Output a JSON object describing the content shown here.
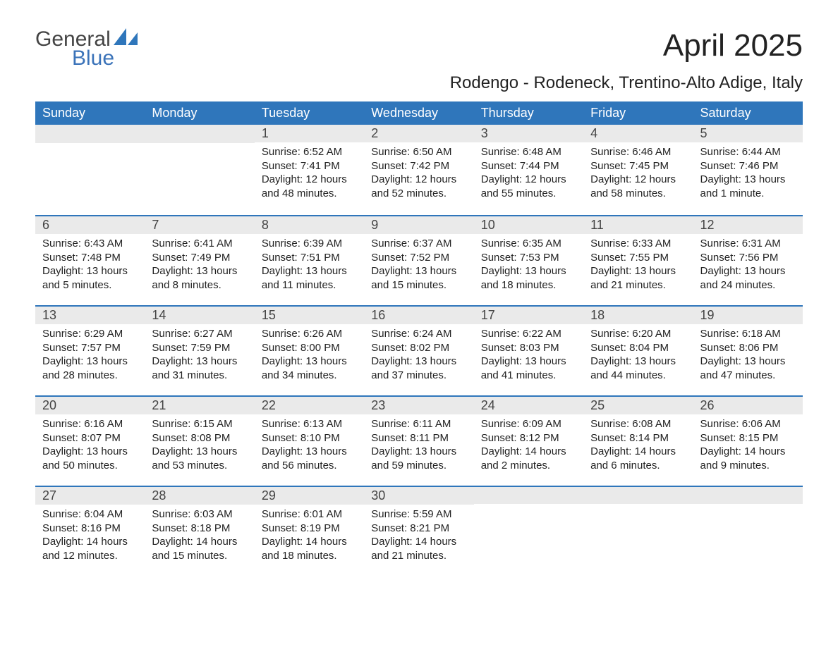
{
  "logo": {
    "line1": "General",
    "line2": "Blue"
  },
  "title": "April 2025",
  "subtitle": "Rodengo - Rodeneck, Trentino-Alto Adige, Italy",
  "weekdays": [
    "Sunday",
    "Monday",
    "Tuesday",
    "Wednesday",
    "Thursday",
    "Friday",
    "Saturday"
  ],
  "colors": {
    "header_bg": "#2f76bb",
    "header_text": "#ffffff",
    "band_bg": "#eaeaea",
    "band_border": "#2f76bb",
    "body_text": "#222222",
    "logo_blue": "#3b73b9",
    "logo_gray": "#444444"
  },
  "weeks": [
    [
      {
        "blank": true
      },
      {
        "blank": true
      },
      {
        "num": "1",
        "sunrise": "Sunrise: 6:52 AM",
        "sunset": "Sunset: 7:41 PM",
        "dl1": "Daylight: 12 hours",
        "dl2": "and 48 minutes."
      },
      {
        "num": "2",
        "sunrise": "Sunrise: 6:50 AM",
        "sunset": "Sunset: 7:42 PM",
        "dl1": "Daylight: 12 hours",
        "dl2": "and 52 minutes."
      },
      {
        "num": "3",
        "sunrise": "Sunrise: 6:48 AM",
        "sunset": "Sunset: 7:44 PM",
        "dl1": "Daylight: 12 hours",
        "dl2": "and 55 minutes."
      },
      {
        "num": "4",
        "sunrise": "Sunrise: 6:46 AM",
        "sunset": "Sunset: 7:45 PM",
        "dl1": "Daylight: 12 hours",
        "dl2": "and 58 minutes."
      },
      {
        "num": "5",
        "sunrise": "Sunrise: 6:44 AM",
        "sunset": "Sunset: 7:46 PM",
        "dl1": "Daylight: 13 hours",
        "dl2": "and 1 minute."
      }
    ],
    [
      {
        "num": "6",
        "sunrise": "Sunrise: 6:43 AM",
        "sunset": "Sunset: 7:48 PM",
        "dl1": "Daylight: 13 hours",
        "dl2": "and 5 minutes."
      },
      {
        "num": "7",
        "sunrise": "Sunrise: 6:41 AM",
        "sunset": "Sunset: 7:49 PM",
        "dl1": "Daylight: 13 hours",
        "dl2": "and 8 minutes."
      },
      {
        "num": "8",
        "sunrise": "Sunrise: 6:39 AM",
        "sunset": "Sunset: 7:51 PM",
        "dl1": "Daylight: 13 hours",
        "dl2": "and 11 minutes."
      },
      {
        "num": "9",
        "sunrise": "Sunrise: 6:37 AM",
        "sunset": "Sunset: 7:52 PM",
        "dl1": "Daylight: 13 hours",
        "dl2": "and 15 minutes."
      },
      {
        "num": "10",
        "sunrise": "Sunrise: 6:35 AM",
        "sunset": "Sunset: 7:53 PM",
        "dl1": "Daylight: 13 hours",
        "dl2": "and 18 minutes."
      },
      {
        "num": "11",
        "sunrise": "Sunrise: 6:33 AM",
        "sunset": "Sunset: 7:55 PM",
        "dl1": "Daylight: 13 hours",
        "dl2": "and 21 minutes."
      },
      {
        "num": "12",
        "sunrise": "Sunrise: 6:31 AM",
        "sunset": "Sunset: 7:56 PM",
        "dl1": "Daylight: 13 hours",
        "dl2": "and 24 minutes."
      }
    ],
    [
      {
        "num": "13",
        "sunrise": "Sunrise: 6:29 AM",
        "sunset": "Sunset: 7:57 PM",
        "dl1": "Daylight: 13 hours",
        "dl2": "and 28 minutes."
      },
      {
        "num": "14",
        "sunrise": "Sunrise: 6:27 AM",
        "sunset": "Sunset: 7:59 PM",
        "dl1": "Daylight: 13 hours",
        "dl2": "and 31 minutes."
      },
      {
        "num": "15",
        "sunrise": "Sunrise: 6:26 AM",
        "sunset": "Sunset: 8:00 PM",
        "dl1": "Daylight: 13 hours",
        "dl2": "and 34 minutes."
      },
      {
        "num": "16",
        "sunrise": "Sunrise: 6:24 AM",
        "sunset": "Sunset: 8:02 PM",
        "dl1": "Daylight: 13 hours",
        "dl2": "and 37 minutes."
      },
      {
        "num": "17",
        "sunrise": "Sunrise: 6:22 AM",
        "sunset": "Sunset: 8:03 PM",
        "dl1": "Daylight: 13 hours",
        "dl2": "and 41 minutes."
      },
      {
        "num": "18",
        "sunrise": "Sunrise: 6:20 AM",
        "sunset": "Sunset: 8:04 PM",
        "dl1": "Daylight: 13 hours",
        "dl2": "and 44 minutes."
      },
      {
        "num": "19",
        "sunrise": "Sunrise: 6:18 AM",
        "sunset": "Sunset: 8:06 PM",
        "dl1": "Daylight: 13 hours",
        "dl2": "and 47 minutes."
      }
    ],
    [
      {
        "num": "20",
        "sunrise": "Sunrise: 6:16 AM",
        "sunset": "Sunset: 8:07 PM",
        "dl1": "Daylight: 13 hours",
        "dl2": "and 50 minutes."
      },
      {
        "num": "21",
        "sunrise": "Sunrise: 6:15 AM",
        "sunset": "Sunset: 8:08 PM",
        "dl1": "Daylight: 13 hours",
        "dl2": "and 53 minutes."
      },
      {
        "num": "22",
        "sunrise": "Sunrise: 6:13 AM",
        "sunset": "Sunset: 8:10 PM",
        "dl1": "Daylight: 13 hours",
        "dl2": "and 56 minutes."
      },
      {
        "num": "23",
        "sunrise": "Sunrise: 6:11 AM",
        "sunset": "Sunset: 8:11 PM",
        "dl1": "Daylight: 13 hours",
        "dl2": "and 59 minutes."
      },
      {
        "num": "24",
        "sunrise": "Sunrise: 6:09 AM",
        "sunset": "Sunset: 8:12 PM",
        "dl1": "Daylight: 14 hours",
        "dl2": "and 2 minutes."
      },
      {
        "num": "25",
        "sunrise": "Sunrise: 6:08 AM",
        "sunset": "Sunset: 8:14 PM",
        "dl1": "Daylight: 14 hours",
        "dl2": "and 6 minutes."
      },
      {
        "num": "26",
        "sunrise": "Sunrise: 6:06 AM",
        "sunset": "Sunset: 8:15 PM",
        "dl1": "Daylight: 14 hours",
        "dl2": "and 9 minutes."
      }
    ],
    [
      {
        "num": "27",
        "sunrise": "Sunrise: 6:04 AM",
        "sunset": "Sunset: 8:16 PM",
        "dl1": "Daylight: 14 hours",
        "dl2": "and 12 minutes."
      },
      {
        "num": "28",
        "sunrise": "Sunrise: 6:03 AM",
        "sunset": "Sunset: 8:18 PM",
        "dl1": "Daylight: 14 hours",
        "dl2": "and 15 minutes."
      },
      {
        "num": "29",
        "sunrise": "Sunrise: 6:01 AM",
        "sunset": "Sunset: 8:19 PM",
        "dl1": "Daylight: 14 hours",
        "dl2": "and 18 minutes."
      },
      {
        "num": "30",
        "sunrise": "Sunrise: 5:59 AM",
        "sunset": "Sunset: 8:21 PM",
        "dl1": "Daylight: 14 hours",
        "dl2": "and 21 minutes."
      },
      {
        "blank": true
      },
      {
        "blank": true
      },
      {
        "blank": true
      }
    ]
  ]
}
